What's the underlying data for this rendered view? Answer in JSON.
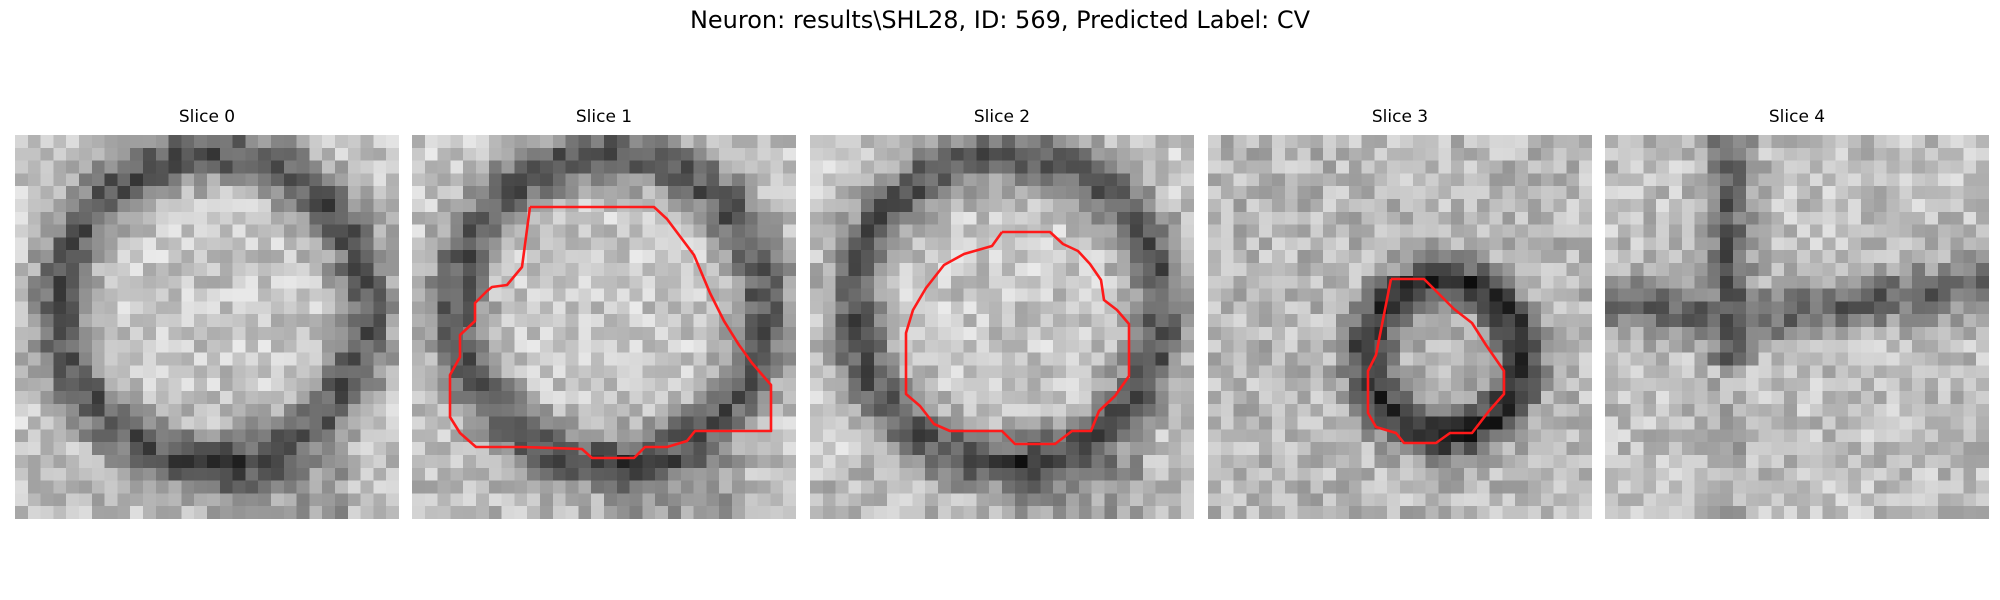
{
  "figure": {
    "title": "Neuron: results\\SHL28, ID: 569, Predicted Label: CV"
  },
  "panels": [
    {
      "title": "Slice 0",
      "has_contour": false,
      "pattern": "ring"
    },
    {
      "title": "Slice 1",
      "has_contour": true,
      "pattern": "ring"
    },
    {
      "title": "Slice 2",
      "has_contour": true,
      "pattern": "ring"
    },
    {
      "title": "Slice 3",
      "has_contour": true,
      "pattern": "small-ring"
    },
    {
      "title": "Slice 4",
      "has_contour": false,
      "pattern": "branch"
    }
  ],
  "colors": {
    "contour": "#ff1a1a",
    "colormap": "gray"
  }
}
